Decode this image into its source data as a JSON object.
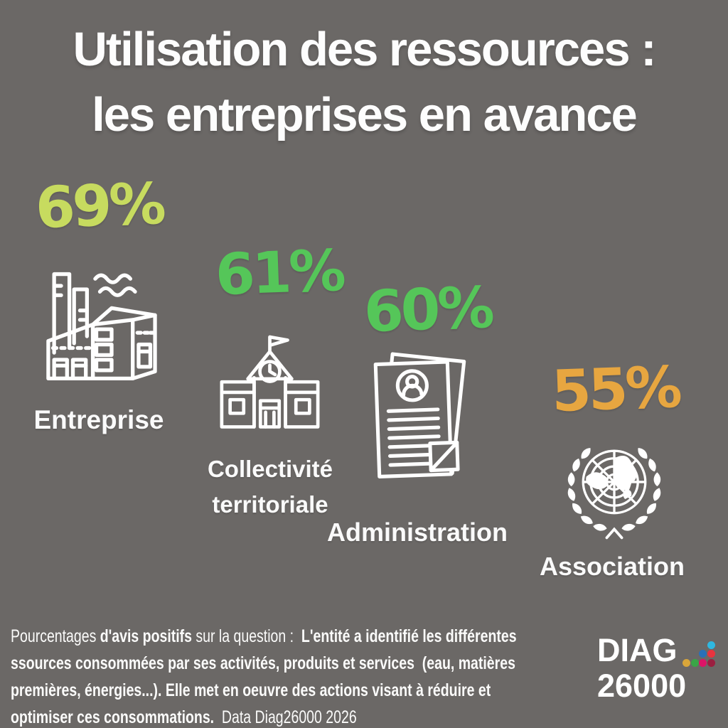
{
  "page": {
    "background_color": "#6b6866",
    "text_color": "#ffffff"
  },
  "title": {
    "line1": "Utilisation des ressources :",
    "line2": "les entreprises en avance"
  },
  "stats": [
    {
      "value": "69%",
      "label": "Entreprise",
      "color": "#c7db5f",
      "icon": "factory-icon"
    },
    {
      "value": "61%",
      "label": "Collectivité\nterritoriale",
      "color": "#55c659",
      "icon": "town-hall-icon"
    },
    {
      "value": "60%",
      "label": "Administration",
      "color": "#55c659",
      "icon": "documents-icon"
    },
    {
      "value": "55%",
      "label": "Association",
      "color": "#e7a640",
      "icon": "un-emblem-icon"
    }
  ],
  "footer": {
    "lines": [
      [
        {
          "t": "Pourcentages ",
          "b": false
        },
        {
          "t": "d'avis positifs ",
          "b": true
        },
        {
          "t": "sur la question :  ",
          "b": false
        },
        {
          "t": "L'entité a identifié les différentes",
          "b": true
        }
      ],
      [
        {
          "t": "ssources consommées par ses activités, produits et services  (eau, matières",
          "b": true
        }
      ],
      [
        {
          "t": "premières, énergies...). Elle met en oeuvre des actions visant à réduire et",
          "b": true
        }
      ],
      [
        {
          "t": "optimiser ces consommations.",
          "b": true
        },
        {
          "t": "  Data Diag26000 2026",
          "b": false
        }
      ]
    ]
  },
  "logo": {
    "line1": "DIAG",
    "line2": "26000",
    "dots": [
      {
        "row": 0,
        "col": 3,
        "color": "#2fb8e0"
      },
      {
        "row": 1,
        "col": 2,
        "color": "#2a70b8"
      },
      {
        "row": 1,
        "col": 3,
        "color": "#e8333f"
      },
      {
        "row": 2,
        "col": 0,
        "color": "#d9a63a"
      },
      {
        "row": 2,
        "col": 1,
        "color": "#3aa547"
      },
      {
        "row": 2,
        "col": 2,
        "color": "#dd1367"
      },
      {
        "row": 2,
        "col": 3,
        "color": "#9b1f40"
      }
    ]
  },
  "chart_data": {
    "type": "table",
    "title": "Utilisation des ressources : les entreprises en avance",
    "categories": [
      "Entreprise",
      "Collectivité territoriale",
      "Administration",
      "Association"
    ],
    "values": [
      69,
      61,
      60,
      55
    ],
    "unit": "%",
    "value_colors": [
      "#c7db5f",
      "#55c659",
      "#55c659",
      "#e7a640"
    ],
    "note": "Pourcentages d'avis positifs sur la question :  L'entité a identifié les différentes ssources consommées par ses activités, produits et services  (eau, matières premières, énergies...). Elle met en oeuvre des actions visant à réduire et optimiser ces consommations.",
    "source": "Data Diag26000 2026"
  }
}
